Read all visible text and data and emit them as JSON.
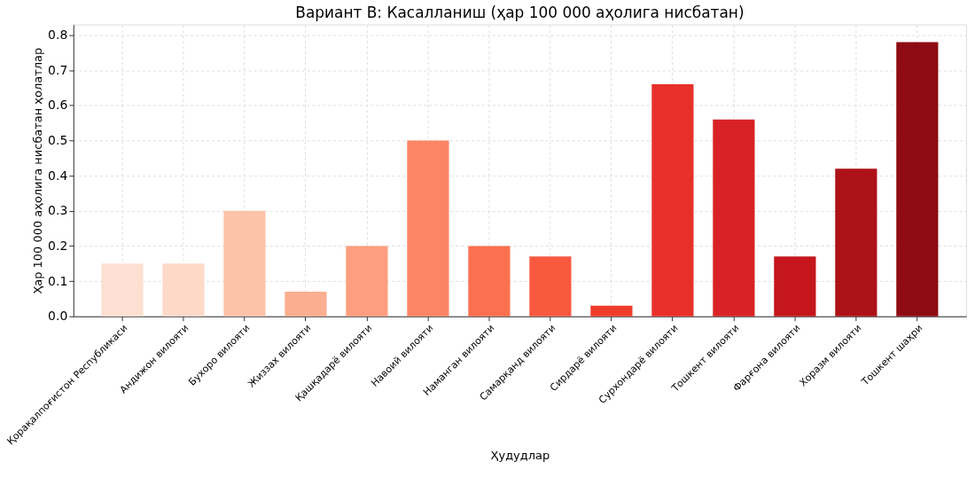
{
  "chart_data": {
    "type": "bar",
    "title": "Вариант B: Касалланиш (ҳар 100 000 аҳолига нисбатан)",
    "xlabel": "Ҳудудлар",
    "ylabel": "Ҳар 100 000 аҳолига нисбатан ҳолатлар",
    "categories": [
      "Қорақалпоғистон Республикаси",
      "Андижон вилояти",
      "Бухоро вилояти",
      "Жиззах вилояти",
      "Қашқадарё вилояти",
      "Навоий вилояти",
      "Наманган вилояти",
      "Самарқанд вилояти",
      "Сирдарё вилояти",
      "Сурхондарё вилояти",
      "Тошкент вилояти",
      "Фарғона вилояти",
      "Хоразм вилояти",
      "Тошкент шаҳри"
    ],
    "values": [
      0.15,
      0.15,
      0.3,
      0.07,
      0.2,
      0.5,
      0.2,
      0.17,
      0.03,
      0.66,
      0.56,
      0.17,
      0.42,
      0.78
    ],
    "colors": [
      "#fde0d2",
      "#fdd9c9",
      "#fcc3aa",
      "#fcae90",
      "#fc9e7f",
      "#fc8565",
      "#fb7050",
      "#f8593f",
      "#ef3c2c",
      "#e8302a",
      "#d92225",
      "#c4161c",
      "#ad1218",
      "#8e0b13"
    ],
    "ylim": [
      0,
      0.83
    ],
    "yticks": [
      {
        "value": 0,
        "label": "0.0"
      },
      0.1,
      0.2,
      0.3,
      0.4,
      0.5,
      0.6,
      0.7,
      0.8
    ],
    "grid": true
  }
}
